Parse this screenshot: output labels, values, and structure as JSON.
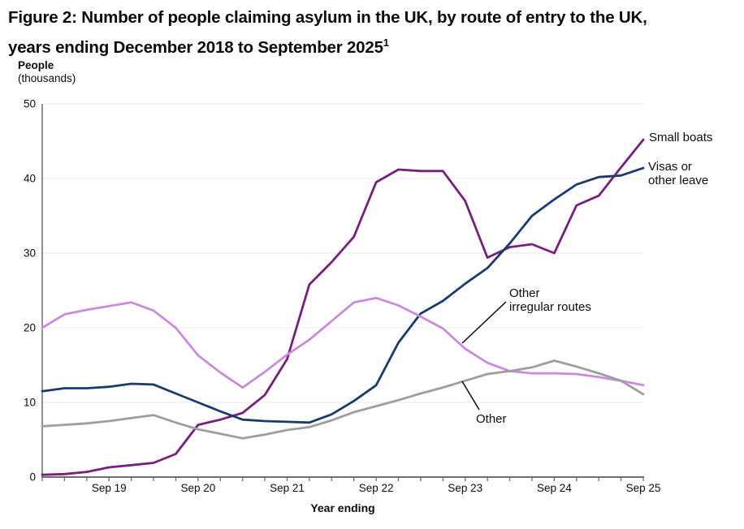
{
  "title": {
    "line1": "Figure 2: Number of people claiming asylum in the UK, by route of entry to the UK,",
    "line2": "years ending December 2018 to September 2025",
    "footnote_marker": "1"
  },
  "y_axis": {
    "label_line1": "People",
    "label_line2": "(thousands)"
  },
  "x_axis": {
    "label": "Year ending"
  },
  "annotations": {
    "small_boats": {
      "line1": "Small boats"
    },
    "visas": {
      "line1": "Visas or",
      "line2": "other leave"
    },
    "other_irregular": {
      "line1": "Other",
      "line2": "irregular routes"
    },
    "other": {
      "line1": "Other"
    }
  },
  "colors": {
    "small_boats": "#771f7d",
    "visas_other_leave": "#1d3a6d",
    "other_irregular_routes": "#ca8bdc",
    "other": "#9e9e9e",
    "axis": "#6e6e6e",
    "gridline": "#ededed",
    "text": "#0b0c0c"
  },
  "chart_data": {
    "type": "line",
    "title": "Figure 2: Number of people claiming asylum in the UK, by route of entry to the UK, years ending December 2018 to September 2025",
    "xlabel": "Year ending",
    "ylabel": "People (thousands)",
    "ylim": [
      0,
      50
    ],
    "y_ticks": [
      0,
      10,
      20,
      30,
      40,
      50
    ],
    "grid": "horizontal",
    "legend_position": "end-of-line-labels",
    "x": [
      "Dec 2018",
      "Mar 2019",
      "Jun 2019",
      "Sep 2019",
      "Dec 2019",
      "Mar 2020",
      "Jun 2020",
      "Sep 2020",
      "Dec 2020",
      "Mar 2021",
      "Jun 2021",
      "Sep 2021",
      "Dec 2021",
      "Mar 2022",
      "Jun 2022",
      "Sep 2022",
      "Dec 2022",
      "Mar 2023",
      "Jun 2023",
      "Sep 2023",
      "Dec 2023",
      "Mar 2024",
      "Jun 2024",
      "Sep 2024",
      "Dec 2024",
      "Mar 2025",
      "Jun 2025",
      "Sep 2025"
    ],
    "x_tick_labels": [
      {
        "label": "Sep 19",
        "index": 3
      },
      {
        "label": "Sep 20",
        "index": 7
      },
      {
        "label": "Sep 21",
        "index": 11
      },
      {
        "label": "Sep 22",
        "index": 15
      },
      {
        "label": "Sep 23",
        "index": 19
      },
      {
        "label": "Sep 24",
        "index": 23
      },
      {
        "label": "Sep 25",
        "index": 27
      }
    ],
    "series": [
      {
        "name": "Small boats",
        "color": "#771f7d",
        "values": [
          0.3,
          0.4,
          0.7,
          1.3,
          1.6,
          1.9,
          3.1,
          7.0,
          7.7,
          8.6,
          11.0,
          15.8,
          25.8,
          28.8,
          32.2,
          39.5,
          41.2,
          41.0,
          41.0,
          37.0,
          29.4,
          30.8,
          31.2,
          30.0,
          36.4,
          37.7,
          41.5,
          45.2
        ]
      },
      {
        "name": "Visas or other leave",
        "color": "#1d3a6d",
        "values": [
          11.5,
          11.9,
          11.9,
          12.1,
          12.5,
          12.4,
          11.2,
          10.0,
          8.8,
          7.7,
          7.5,
          7.4,
          7.3,
          8.4,
          10.2,
          12.3,
          18.0,
          21.9,
          23.6,
          25.9,
          28.0,
          31.3,
          35.0,
          37.2,
          39.2,
          40.2,
          40.4,
          41.4
        ]
      },
      {
        "name": "Other irregular routes",
        "color": "#ca8bdc",
        "values": [
          20.0,
          21.8,
          22.4,
          22.9,
          23.4,
          22.3,
          20.0,
          16.3,
          14.0,
          12.0,
          14.1,
          16.4,
          18.4,
          20.9,
          23.4,
          24.0,
          23.0,
          21.5,
          19.9,
          17.2,
          15.3,
          14.2,
          13.9,
          13.9,
          13.8,
          13.4,
          12.9,
          12.3
        ]
      },
      {
        "name": "Other",
        "color": "#9e9e9e",
        "values": [
          6.8,
          7.0,
          7.2,
          7.5,
          7.9,
          8.3,
          7.3,
          6.4,
          5.8,
          5.2,
          5.7,
          6.3,
          6.7,
          7.6,
          8.7,
          9.5,
          10.3,
          11.2,
          12.0,
          12.9,
          13.8,
          14.2,
          14.7,
          15.6,
          14.8,
          13.9,
          12.9,
          11.1
        ]
      }
    ]
  }
}
